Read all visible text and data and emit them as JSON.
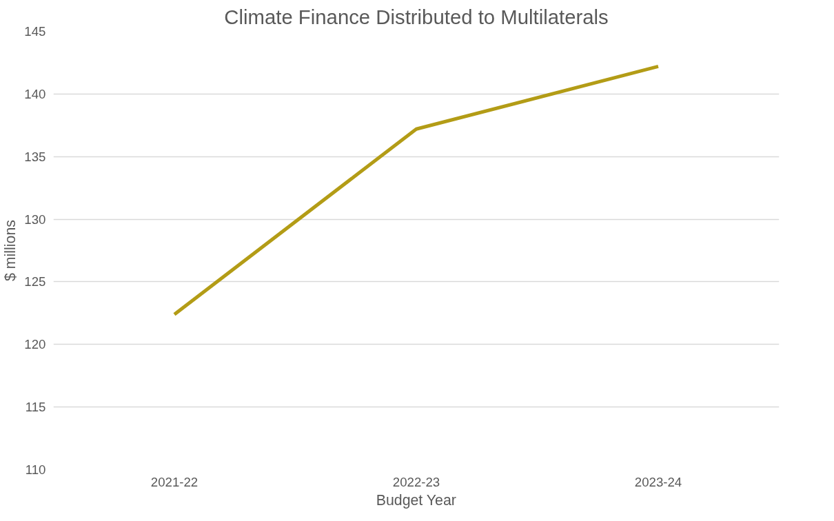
{
  "chart_data": {
    "type": "line",
    "title": "Climate Finance Distributed to Multilaterals",
    "xlabel": "Budget Year",
    "ylabel": "$ millions",
    "categories": [
      "2021-22",
      "2022-23",
      "2023-24"
    ],
    "series": [
      {
        "color": "#b39c16",
        "values": [
          122.4,
          137.2,
          142.2
        ]
      }
    ],
    "ylim": [
      110,
      145
    ],
    "yticks": [
      110,
      115,
      120,
      125,
      130,
      135,
      140,
      145
    ],
    "grid": "y",
    "marker": "none",
    "line_style": "solid"
  }
}
